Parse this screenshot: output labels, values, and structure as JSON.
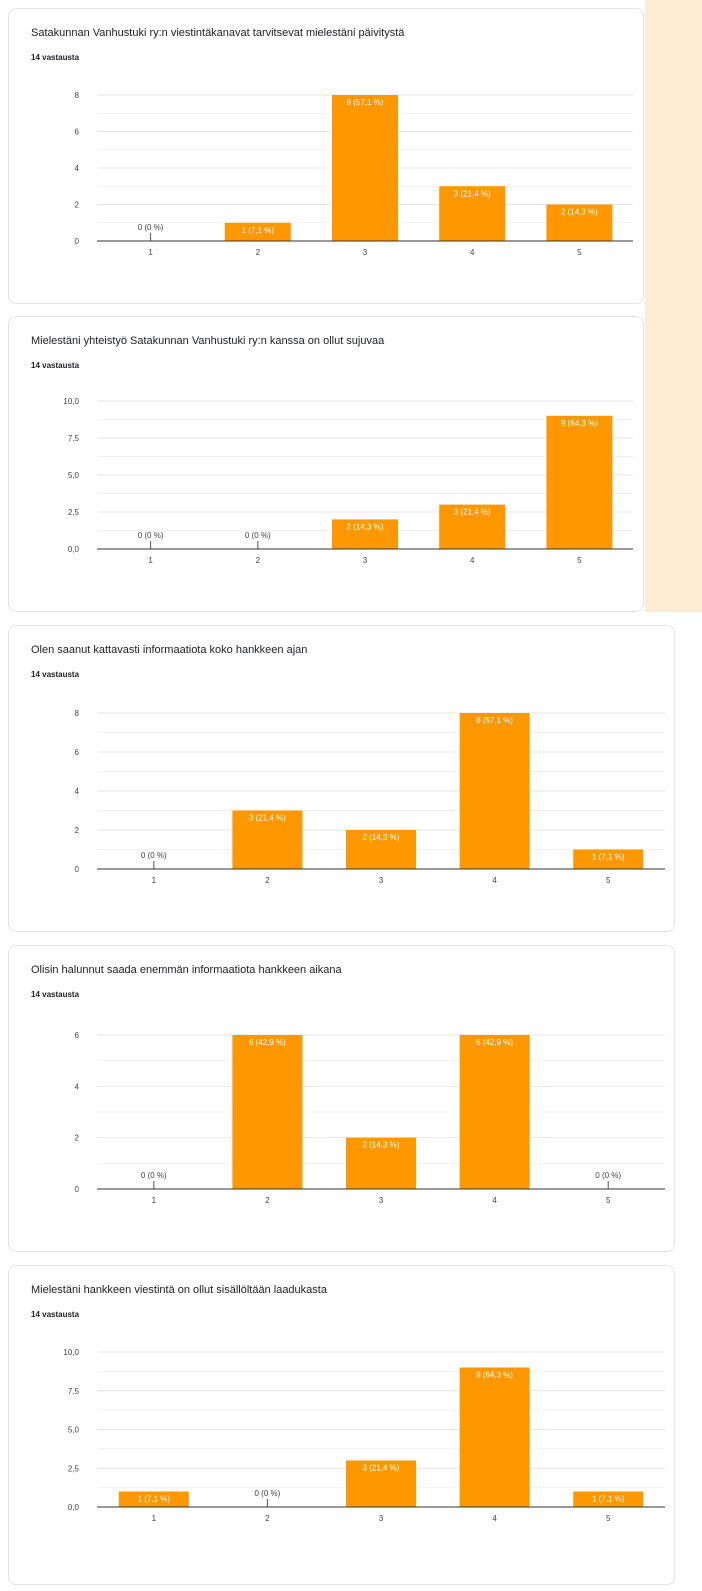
{
  "page": {
    "background": "#fdebd3",
    "bar_color": "#ff9800"
  },
  "cards": [
    {
      "title": "Satakunnan Vanhustuki ry:n viestintäkanavat tarvitsevat mielestäni päivitystä",
      "count_label": "14 vastausta",
      "chart_data": {
        "type": "bar",
        "categories": [
          "1",
          "2",
          "3",
          "4",
          "5"
        ],
        "values": [
          0,
          1,
          8,
          3,
          2
        ],
        "data_labels": [
          "0 (0 %)",
          "1 (7,1 %)",
          "8 (57,1 %)",
          "3 (21,4 %)",
          "2 (14,3 %)"
        ],
        "yticks": [
          "0",
          "2",
          "4",
          "6",
          "8"
        ],
        "ylim": [
          0,
          8
        ],
        "grid": true
      }
    },
    {
      "title": "Mielestäni yhteistyö Satakunnan Vanhustuki ry:n kanssa on ollut sujuvaa",
      "count_label": "14 vastausta",
      "chart_data": {
        "type": "bar",
        "categories": [
          "1",
          "2",
          "3",
          "4",
          "5"
        ],
        "values": [
          0,
          0,
          2,
          3,
          9
        ],
        "data_labels": [
          "0 (0 %)",
          "0 (0 %)",
          "2 (14,3 %)",
          "3 (21,4 %)",
          "9 (64,3 %)"
        ],
        "yticks": [
          "0,0",
          "2,5",
          "5,0",
          "7,5",
          "10,0"
        ],
        "ylim": [
          0,
          10
        ],
        "grid": true
      }
    },
    {
      "title": "Olen saanut kattavasti informaatiota koko hankkeen ajan",
      "count_label": "14 vastausta",
      "chart_data": {
        "type": "bar",
        "categories": [
          "1",
          "2",
          "3",
          "4",
          "5"
        ],
        "values": [
          0,
          3,
          2,
          8,
          1
        ],
        "data_labels": [
          "0 (0 %)",
          "3 (21,4 %)",
          "2 (14,3 %)",
          "8 (57,1 %)",
          "1 (7,1 %)"
        ],
        "yticks": [
          "0",
          "2",
          "4",
          "6",
          "8"
        ],
        "ylim": [
          0,
          8
        ],
        "grid": true
      }
    },
    {
      "title": "Olisin halunnut saada enemmän informaatiota hankkeen aikana",
      "count_label": "14 vastausta",
      "chart_data": {
        "type": "bar",
        "categories": [
          "1",
          "2",
          "3",
          "4",
          "5"
        ],
        "values": [
          0,
          6,
          2,
          6,
          0
        ],
        "data_labels": [
          "0 (0 %)",
          "6 (42,9 %)",
          "2 (14,3 %)",
          "6 (42,9 %)",
          "0 (0 %)"
        ],
        "yticks": [
          "0",
          "2",
          "4",
          "6"
        ],
        "ylim": [
          0,
          6
        ],
        "grid": true
      }
    },
    {
      "title": "Mielestäni hankkeen viestintä on ollut sisällöltään laadukasta",
      "count_label": "14 vastausta",
      "chart_data": {
        "type": "bar",
        "categories": [
          "1",
          "2",
          "3",
          "4",
          "5"
        ],
        "values": [
          1,
          0,
          3,
          9,
          1
        ],
        "data_labels": [
          "1 (7,1 %)",
          "0 (0 %)",
          "3 (21,4 %)",
          "9 (64,3 %)",
          "1 (7,1 %)"
        ],
        "yticks": [
          "0,0",
          "2,5",
          "5,0",
          "7,5",
          "10,0"
        ],
        "ylim": [
          0,
          10
        ],
        "grid": true
      }
    }
  ]
}
